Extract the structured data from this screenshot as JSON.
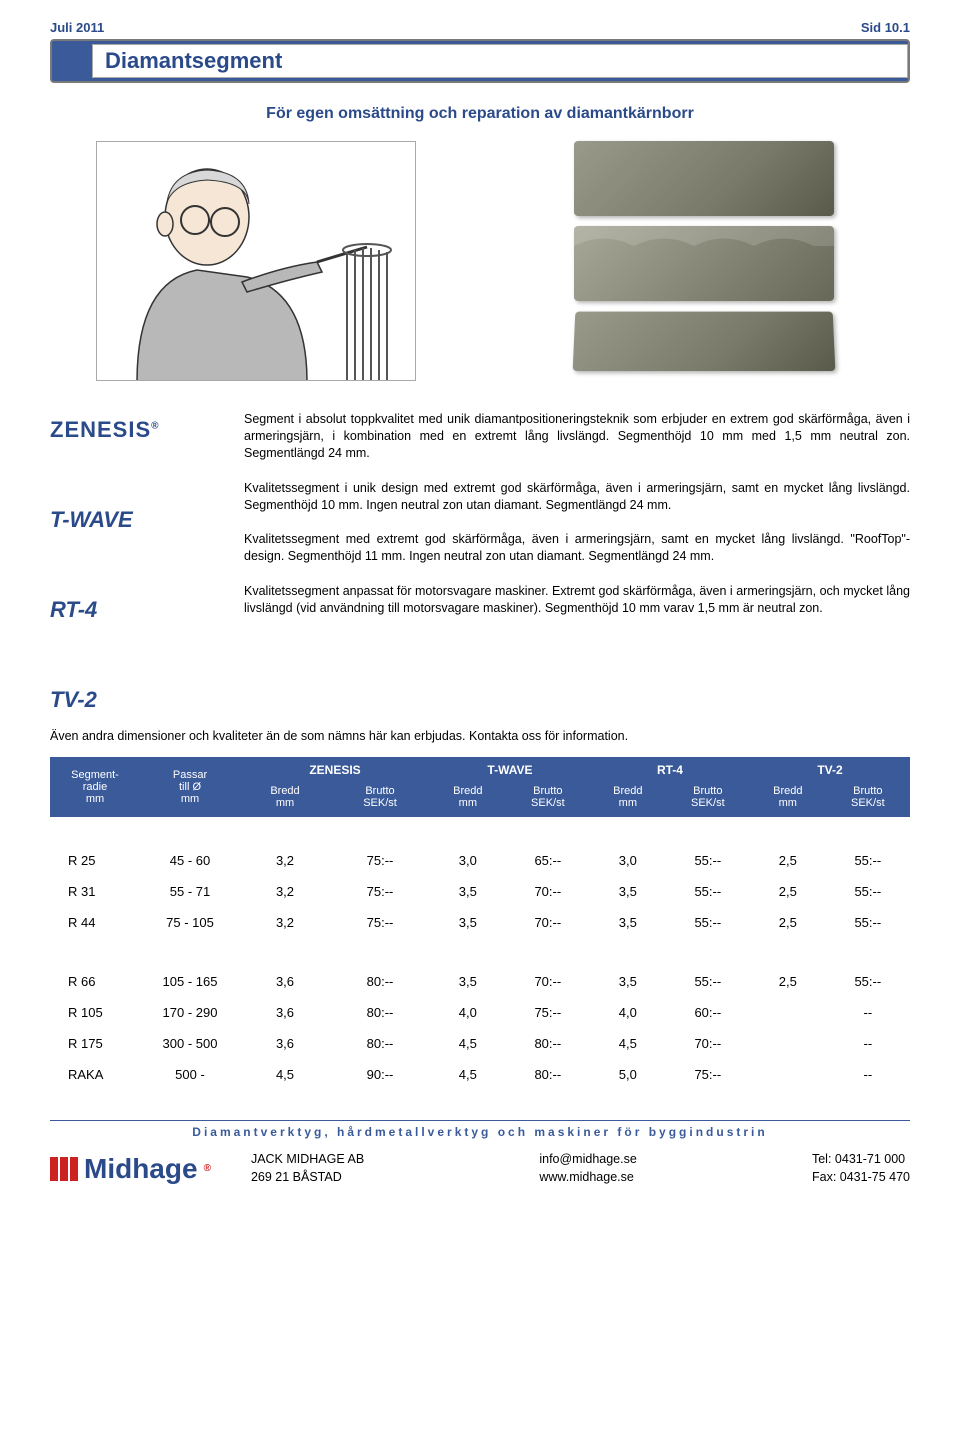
{
  "header": {
    "date": "Juli 2011",
    "pageref": "Sid 10.1"
  },
  "title": "Diamantsegment",
  "subtitle": "För egen omsättning och reparation av diamantkärnborr",
  "brands": {
    "zenesis": {
      "name": "ZENESIS",
      "desc": "Segment i absolut toppkvalitet med unik diamantpositioneringsteknik som erbjuder en extrem god skärförmåga, även i armeringsjärn, i kombination med en extremt lång livslängd. Segmenthöjd 10 mm med 1,5 mm neutral zon. Segmentlängd 24 mm."
    },
    "twave": {
      "name": "T-WAVE",
      "desc": "Kvalitetssegment i unik design med extremt god skärförmåga, även i armeringsjärn, samt en mycket lång livslängd. Segmenthöjd 10 mm. Ingen neutral zon utan diamant. Segmentlängd 24 mm."
    },
    "rt4": {
      "name": "RT-4",
      "desc": "Kvalitetssegment med extremt god skärförmåga, även i armeringsjärn, samt en mycket lång livslängd. \"RoofTop\"-design. Segmenthöjd 11 mm. Ingen neutral zon utan diamant. Segmentlängd 24 mm."
    },
    "tv2": {
      "name": "TV-2",
      "desc": "Kvalitetssegment anpassat för motorsvagare maskiner. Extremt god skärförmåga, även i armeringsjärn, och mycket lång livslängd (vid användning till motorsvagare maskiner). Segmenthöjd 10 mm varav 1,5 mm är neutral zon."
    }
  },
  "note": "Även andra dimensioner och kvaliteter än de som nämns här kan erbjudas. Kontakta oss för information.",
  "table": {
    "head": {
      "c1": {
        "l1": "Segment-",
        "l2": "radie",
        "l3": "mm"
      },
      "c2": {
        "l1": "Passar",
        "l2": "till Ø",
        "l3": "mm"
      },
      "groups": [
        "ZENESIS",
        "T-WAVE",
        "RT-4",
        "TV-2"
      ],
      "sub": {
        "bredd": "Bredd",
        "breddmm": "mm",
        "brutto": "Brutto",
        "bruttounit": "SEK/st"
      }
    },
    "rows1": [
      {
        "r": "R 25",
        "fit": "45 - 60",
        "z_b": "3,2",
        "z_p": "75:--",
        "t_b": "3,0",
        "t_p": "65:--",
        "r_b": "3,0",
        "r_p": "55:--",
        "v_b": "2,5",
        "v_p": "55:--"
      },
      {
        "r": "R 31",
        "fit": "55 - 71",
        "z_b": "3,2",
        "z_p": "75:--",
        "t_b": "3,5",
        "t_p": "70:--",
        "r_b": "3,5",
        "r_p": "55:--",
        "v_b": "2,5",
        "v_p": "55:--"
      },
      {
        "r": "R 44",
        "fit": "75 - 105",
        "z_b": "3,2",
        "z_p": "75:--",
        "t_b": "3,5",
        "t_p": "70:--",
        "r_b": "3,5",
        "r_p": "55:--",
        "v_b": "2,5",
        "v_p": "55:--"
      }
    ],
    "rows2": [
      {
        "r": "R 66",
        "fit": "105 - 165",
        "z_b": "3,6",
        "z_p": "80:--",
        "t_b": "3,5",
        "t_p": "70:--",
        "r_b": "3,5",
        "r_p": "55:--",
        "v_b": "2,5",
        "v_p": "55:--"
      },
      {
        "r": "R 105",
        "fit": "170 - 290",
        "z_b": "3,6",
        "z_p": "80:--",
        "t_b": "4,0",
        "t_p": "75:--",
        "r_b": "4,0",
        "r_p": "60:--",
        "v_b": "",
        "v_p": "--"
      },
      {
        "r": "R 175",
        "fit": "300 - 500",
        "z_b": "3,6",
        "z_p": "80:--",
        "t_b": "4,5",
        "t_p": "80:--",
        "r_b": "4,5",
        "r_p": "70:--",
        "v_b": "",
        "v_p": "--"
      },
      {
        "r": "RAKA",
        "fit": "500 -",
        "z_b": "4,5",
        "z_p": "90:--",
        "t_b": "4,5",
        "t_p": "80:--",
        "r_b": "5,0",
        "r_p": "75:--",
        "v_b": "",
        "v_p": "--"
      }
    ]
  },
  "footer": {
    "tagline": "Diamantverktyg, hårdmetallverktyg och maskiner för byggindustrin",
    "logo": "Midhage",
    "company": "JACK MIDHAGE AB",
    "city": "269 21  BÅSTAD",
    "email": "info@midhage.se",
    "web": "www.midhage.se",
    "tel": "Tel:   0431-71 000",
    "fax": "Fax: 0431-75 470"
  },
  "colors": {
    "primary": "#3a5a9a",
    "text_primary": "#2a4a8a",
    "logo_red": "#cc2222"
  }
}
